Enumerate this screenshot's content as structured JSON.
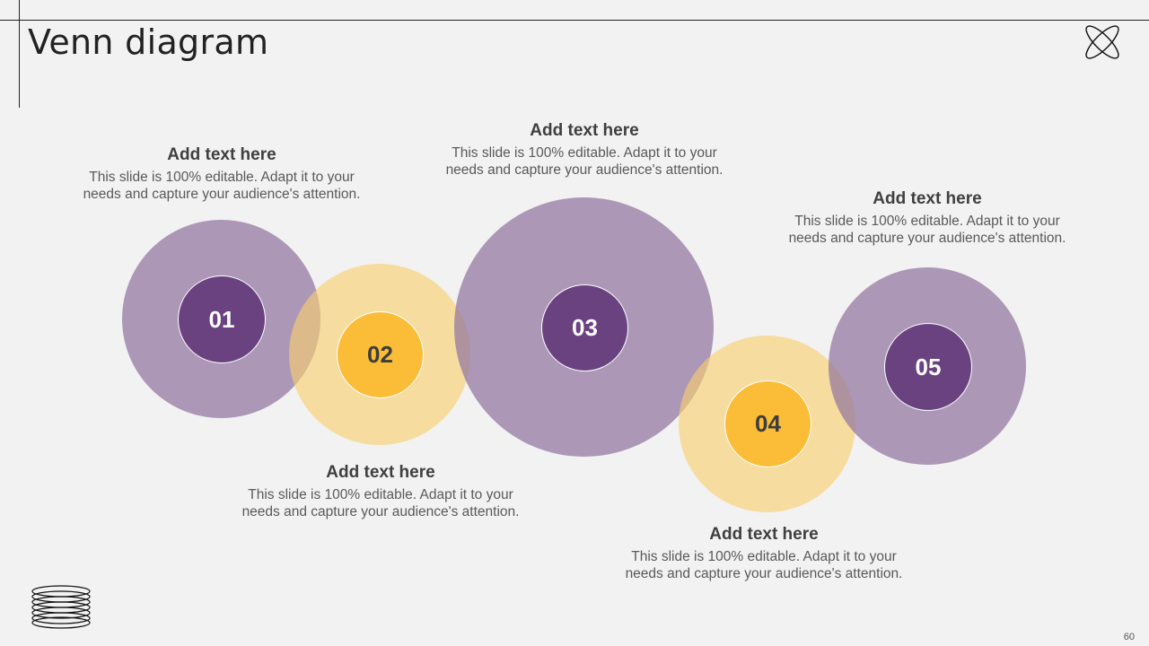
{
  "title": "Venn diagram",
  "page_number": "60",
  "icons": {
    "top_right": "atom-icon",
    "bottom_left": "coil-spring-icon"
  },
  "colors": {
    "purple_light": "#a893b2",
    "purple_dark": "#6a4280",
    "yellow_light": "#f8d892",
    "yellow_dark": "#fbbd37",
    "background": "#f2f2f2"
  },
  "circles": [
    {
      "number": "01",
      "color": "purple"
    },
    {
      "number": "02",
      "color": "yellow"
    },
    {
      "number": "03",
      "color": "purple"
    },
    {
      "number": "04",
      "color": "yellow"
    },
    {
      "number": "05",
      "color": "purple"
    }
  ],
  "text_blocks": [
    {
      "heading": "Add text here",
      "body": "This slide is 100% editable. Adapt it to your needs and capture your audience's attention."
    },
    {
      "heading": "Add text here",
      "body": "This slide is 100% editable. Adapt it to your needs and capture your audience's attention."
    },
    {
      "heading": "Add text here",
      "body": "This slide is 100% editable. Adapt it to your needs and capture your audience's attention."
    },
    {
      "heading": "Add text here",
      "body": "This slide is 100% editable. Adapt it to your needs and capture your audience's attention."
    },
    {
      "heading": "Add text here",
      "body": "This slide is 100% editable. Adapt it to your needs and capture your audience's attention."
    }
  ]
}
